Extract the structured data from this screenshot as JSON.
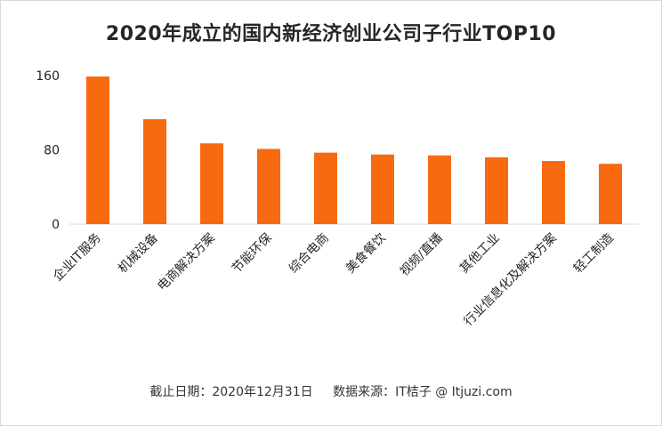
{
  "chart_data": {
    "type": "bar",
    "title": "2020年成立的国内新经济创业公司子行业TOP10",
    "categories": [
      "企业IT服务",
      "机械设备",
      "电商解决方案",
      "节能环保",
      "综合电商",
      "美食餐饮",
      "视频/直播",
      "其他工业",
      "行业信息化及解决方案",
      "轻工制造"
    ],
    "values": [
      159,
      113,
      87,
      81,
      77,
      75,
      74,
      72,
      68,
      65
    ],
    "ylim": [
      0,
      160
    ],
    "yticks": [
      0,
      80,
      160
    ],
    "xlabel": "",
    "ylabel": "",
    "grid": false,
    "bar_color": "#f86a10"
  },
  "footer": {
    "date_text": "截止日期：2020年12月31日",
    "source_text": "数据来源：IT桔子 @ Itjuzi.com"
  }
}
